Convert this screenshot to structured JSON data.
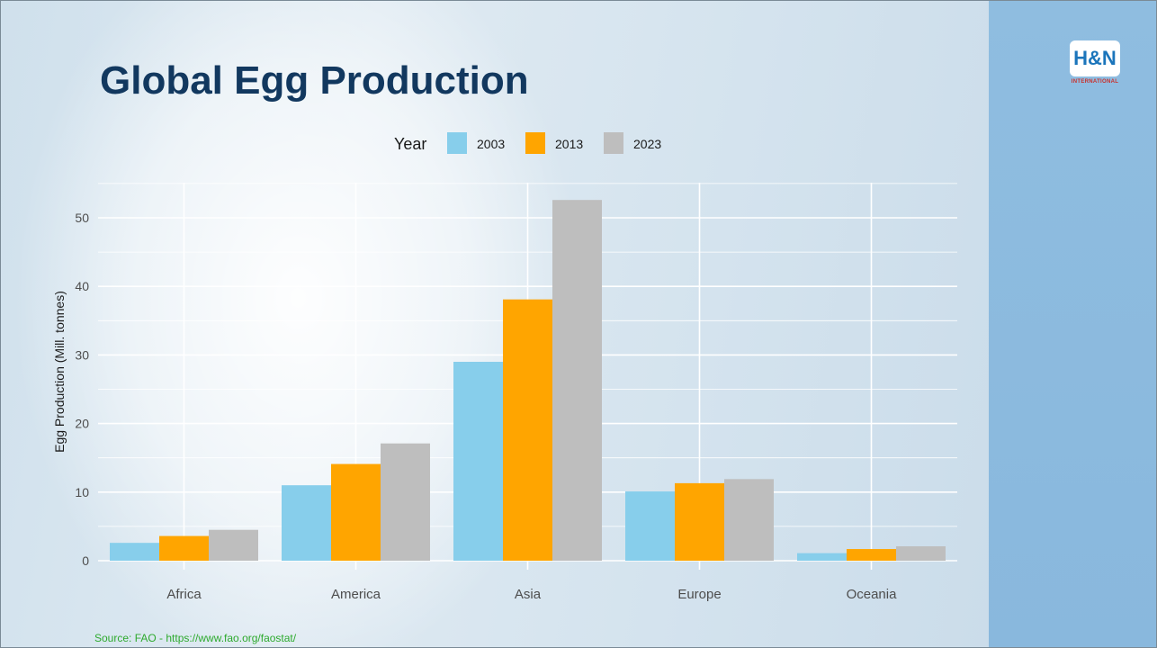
{
  "slide": {
    "title": "Global Egg Production",
    "logo_text": "H&N",
    "logo_sub": "INTERNATIONAL",
    "source": "Source: FAO - https://www.fao.org/faostat/"
  },
  "chart_data": {
    "type": "bar",
    "title": "",
    "xlabel": "",
    "ylabel": "Egg Production (Mill. tonnes)",
    "ylim": [
      0,
      55
    ],
    "yticks": [
      0,
      10,
      20,
      30,
      40,
      50
    ],
    "grid": true,
    "legend_title": "Year",
    "legend_position": "top",
    "categories": [
      "Africa",
      "America",
      "Asia",
      "Europe",
      "Oceania"
    ],
    "series": [
      {
        "name": "2003",
        "color": "#87ceeb",
        "values": [
          2.6,
          11.0,
          29.0,
          10.1,
          1.1
        ]
      },
      {
        "name": "2013",
        "color": "#ffa500",
        "values": [
          3.6,
          14.1,
          38.1,
          11.3,
          1.7
        ]
      },
      {
        "name": "2023",
        "color": "#bebebe",
        "values": [
          4.5,
          17.1,
          52.6,
          11.9,
          2.1
        ]
      }
    ]
  }
}
